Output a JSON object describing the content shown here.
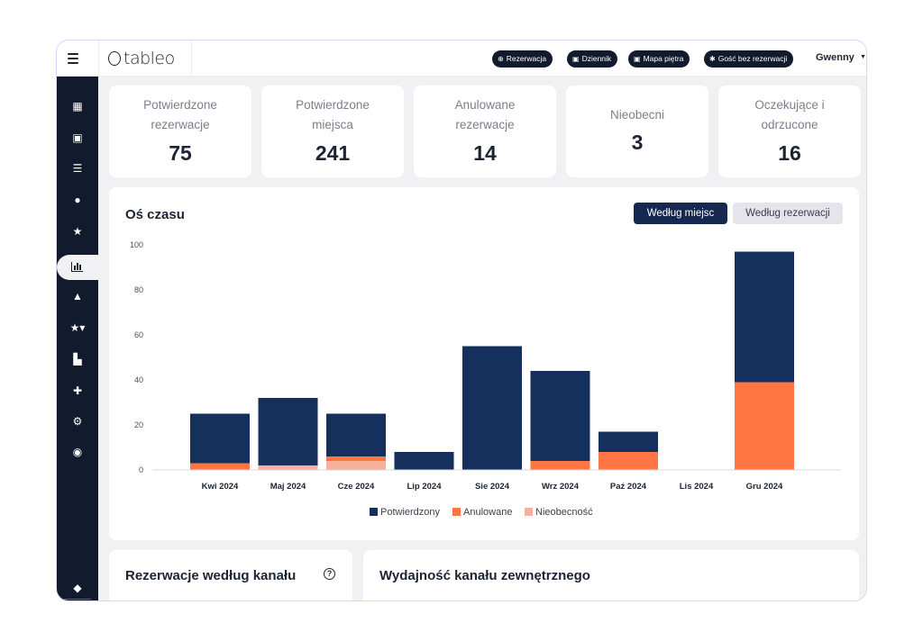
{
  "app": {
    "logo": "tableo",
    "user_name": "Gwenny"
  },
  "header": {
    "actions": [
      {
        "label": "Rezerwacja",
        "icon": "plus-icon"
      },
      {
        "label": "Dziennik",
        "icon": "book-icon"
      },
      {
        "label": "Mapa piętra",
        "icon": "map-icon"
      },
      {
        "label": "Gość bez rezerwacji",
        "icon": "walk-in-icon"
      }
    ]
  },
  "sidebar": {
    "items": [
      {
        "icon": "dashboard-icon",
        "glyph": "▦"
      },
      {
        "icon": "book-icon",
        "glyph": "▣"
      },
      {
        "icon": "list-icon",
        "glyph": "☰"
      },
      {
        "icon": "user-icon",
        "glyph": "👤"
      },
      {
        "icon": "star-icon",
        "glyph": "★"
      },
      {
        "icon": "bar-chart-icon",
        "glyph": ""
      },
      {
        "icon": "bell-icon",
        "glyph": "▲"
      },
      {
        "icon": "star-dropdown-icon",
        "glyph": "★▾"
      },
      {
        "icon": "cart-icon",
        "glyph": "🛒"
      },
      {
        "icon": "puzzle-icon",
        "glyph": "✚"
      },
      {
        "icon": "gear-icon",
        "glyph": "⚙"
      },
      {
        "icon": "headset-icon",
        "glyph": "◉"
      },
      {
        "icon": "chat-icon",
        "glyph": "💬"
      }
    ]
  },
  "stats": [
    {
      "label_line1": "Potwierdzone",
      "label_line2": "rezerwacje",
      "value": "75"
    },
    {
      "label_line1": "Potwierdzone",
      "label_line2": "miejsca",
      "value": "241"
    },
    {
      "label_line1": "Anulowane",
      "label_line2": "rezerwacje",
      "value": "14"
    },
    {
      "label_line1": "Nieobecni",
      "label_line2": "",
      "value": "3"
    },
    {
      "label_line1": "Oczekujące i",
      "label_line2": "odrzucone",
      "value": "16"
    }
  ],
  "timeline": {
    "title": "Oś czasu",
    "toggle_active": "Według miejsc",
    "toggle_inactive": "Według rezerwacji"
  },
  "chart_data": {
    "type": "bar",
    "stacked": true,
    "title": "Oś czasu",
    "categories": [
      "Kwi 2024",
      "Maj 2024",
      "Cze 2024",
      "Lip 2024",
      "Sie 2024",
      "Wrz 2024",
      "Paź 2024",
      "Lis 2024",
      "Gru 2024"
    ],
    "series": [
      {
        "name": "Nieobecność",
        "color": "#f7b09a",
        "values": [
          0,
          2,
          4,
          0,
          0,
          0,
          0,
          0,
          0
        ]
      },
      {
        "name": "Anulowane",
        "color": "#ff7544",
        "values": [
          3,
          0,
          2,
          0,
          0,
          4,
          8,
          0,
          39
        ]
      },
      {
        "name": "Potwierdzony",
        "color": "#16305e",
        "values": [
          22,
          30,
          19,
          8,
          55,
          40,
          9,
          0,
          58
        ]
      }
    ],
    "legend_order": [
      "Potwierdzony",
      "Anulowane",
      "Nieobecność"
    ],
    "yticks": [
      0,
      20,
      40,
      60,
      80,
      100
    ],
    "ylim": [
      0,
      100
    ],
    "legend_position": "bottom"
  },
  "bottom": {
    "channel_title": "Rezerwacje według kanału",
    "external_title": "Wydajność kanału zewnętrznego"
  }
}
